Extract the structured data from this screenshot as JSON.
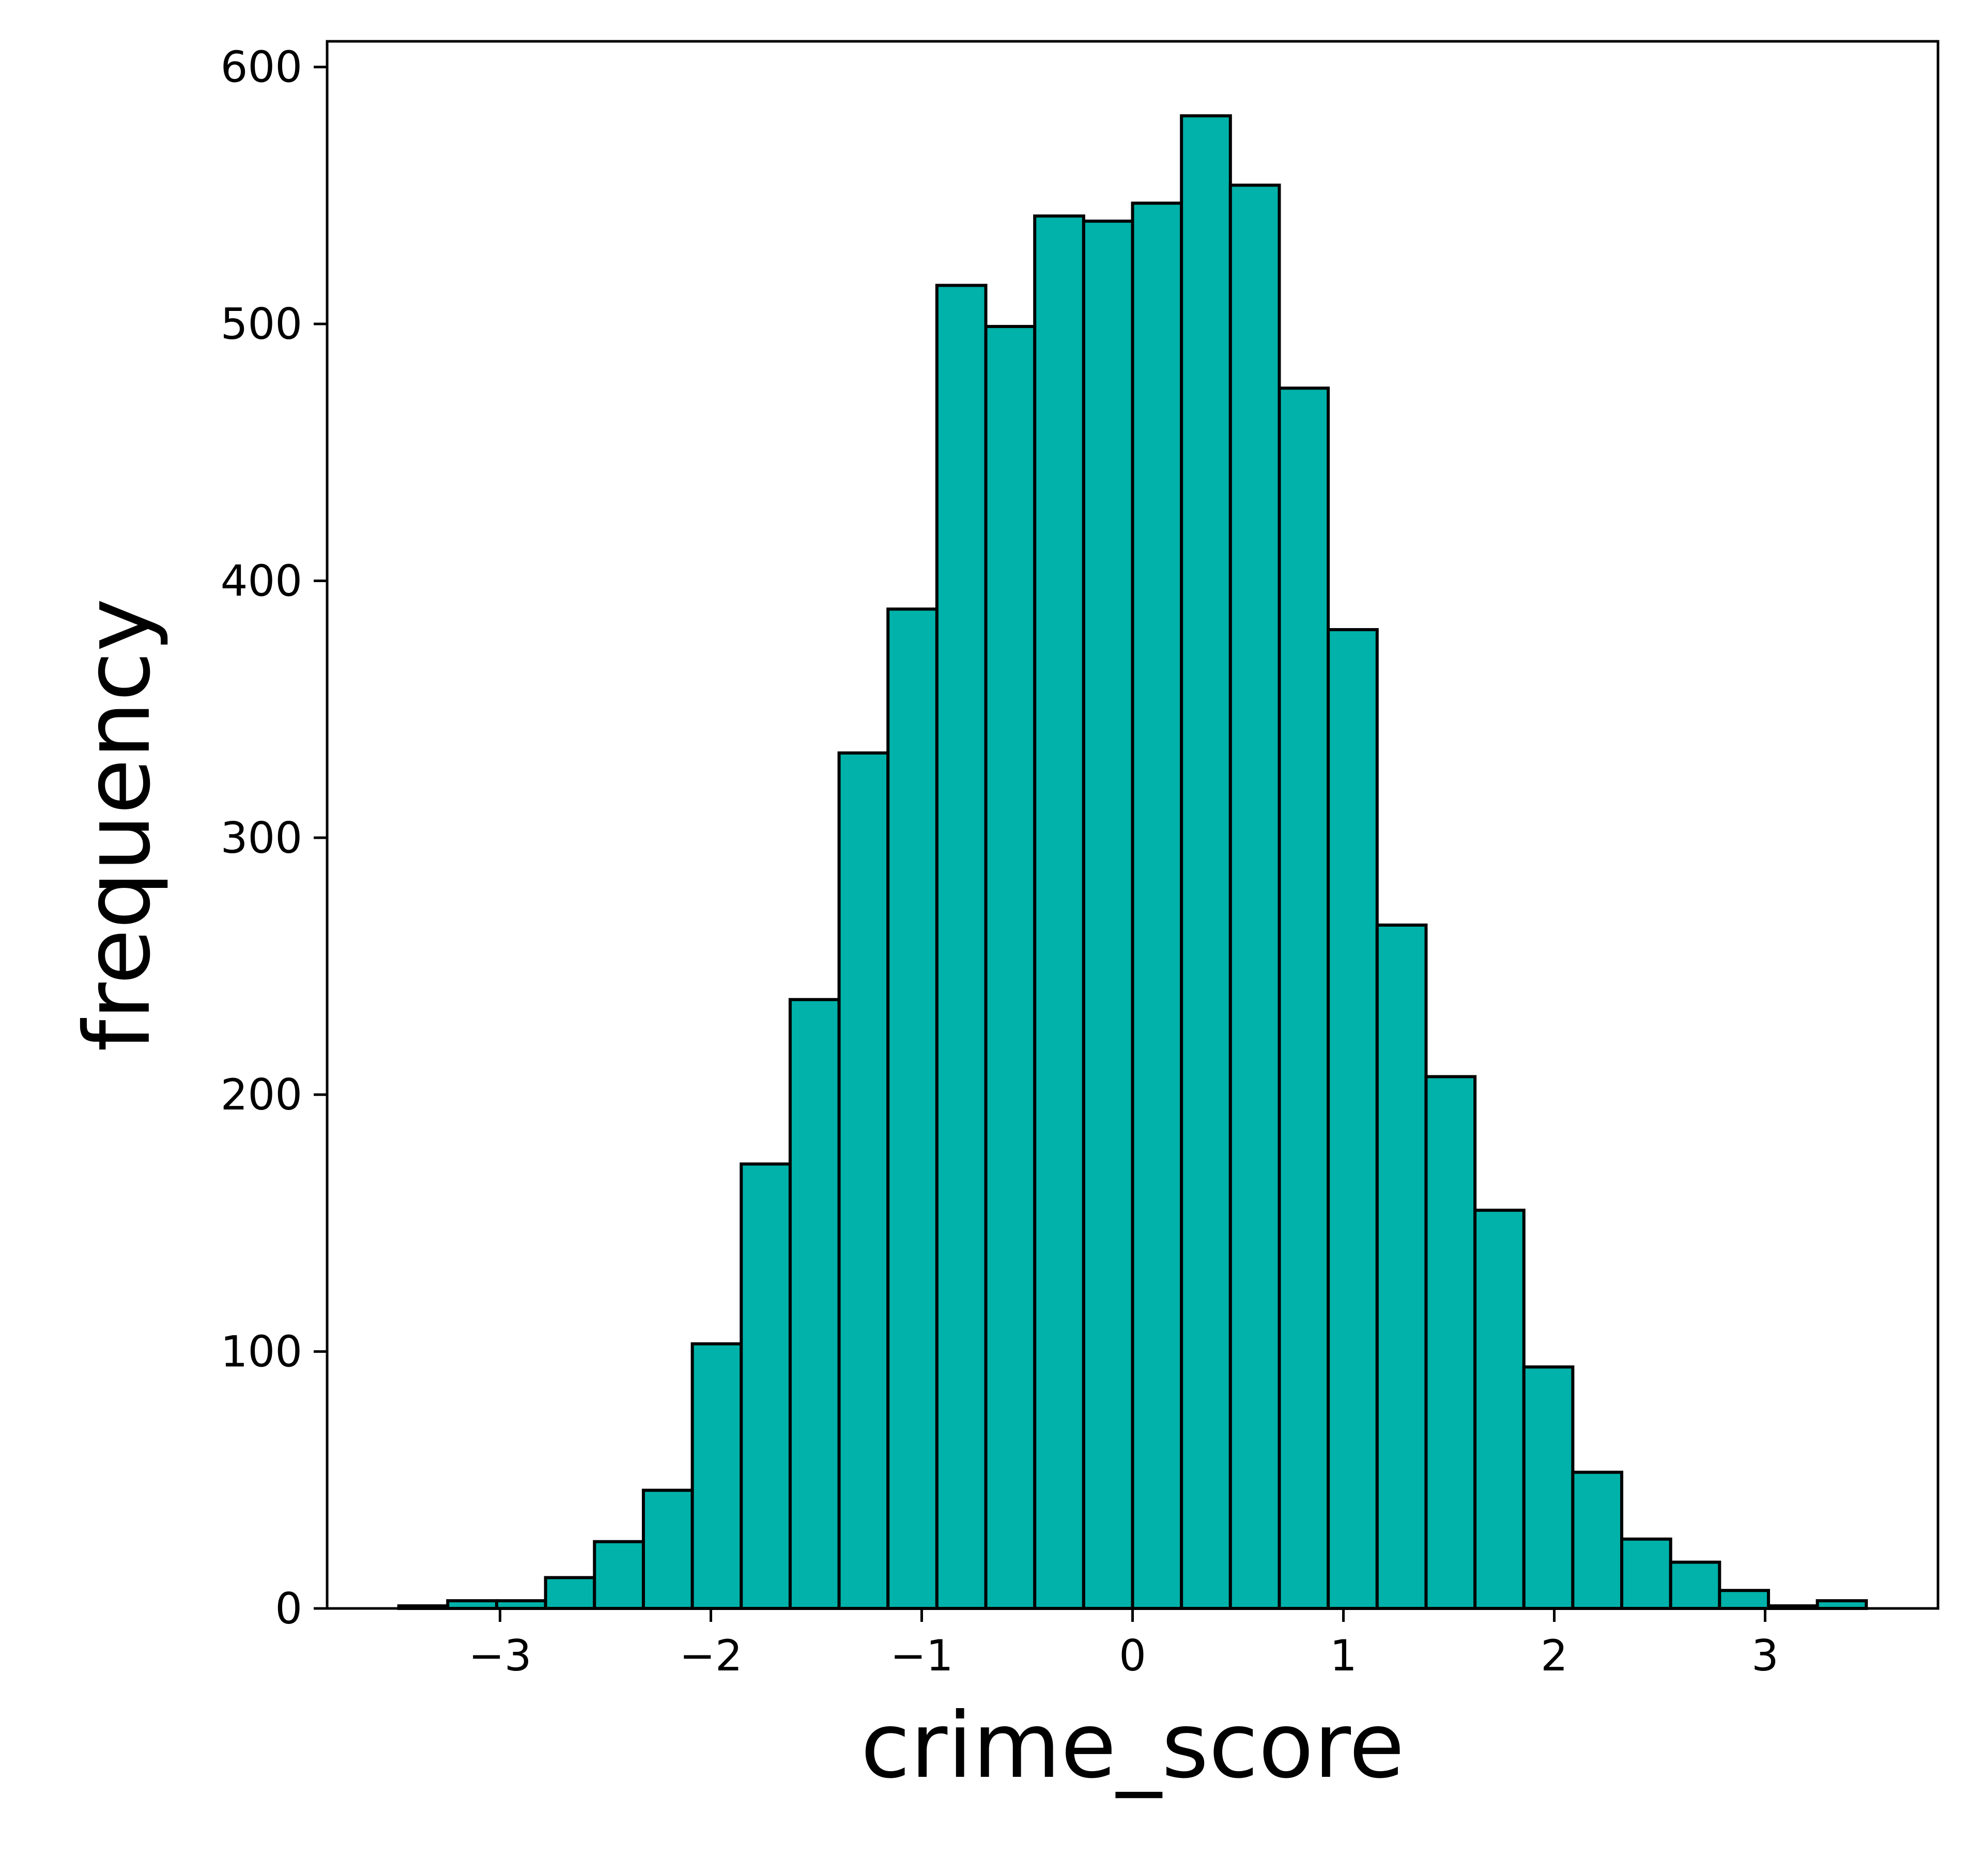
{
  "chart_data": {
    "type": "bar",
    "subtype": "histogram",
    "title": "",
    "xlabel": "crime_score",
    "ylabel": "frequency",
    "xlim": [
      -3.82,
      3.82
    ],
    "ylim": [
      0,
      610
    ],
    "grid": false,
    "legend": "none",
    "bin_edges": [
      -3.48,
      -3.248,
      -3.016,
      -2.784,
      -2.552,
      -2.32,
      -2.088,
      -1.856,
      -1.624,
      -1.392,
      -1.16,
      -0.928,
      -0.696,
      -0.464,
      -0.232,
      0.0,
      0.232,
      0.464,
      0.696,
      0.928,
      1.16,
      1.392,
      1.624,
      1.856,
      2.088,
      2.32,
      2.552,
      2.784,
      3.016,
      3.248,
      3.48
    ],
    "values": [
      1,
      3,
      3,
      12,
      26,
      46,
      103,
      173,
      237,
      333,
      389,
      515,
      499,
      542,
      540,
      547,
      581,
      554,
      475,
      381,
      266,
      207,
      155,
      94,
      53,
      27,
      18,
      7,
      1,
      3
    ],
    "xticks": [
      -3,
      -2,
      -1,
      0,
      1,
      2,
      3
    ],
    "xtick_labels": [
      "−3",
      "−2",
      "−1",
      "0",
      "1",
      "2",
      "3"
    ],
    "yticks": [
      0,
      100,
      200,
      300,
      400,
      500,
      600
    ],
    "ytick_labels": [
      "0",
      "100",
      "200",
      "300",
      "400",
      "500",
      "600"
    ],
    "colors": {
      "bar_fill": "#00B2A9",
      "bar_edge": "#000000",
      "axes": "#000000",
      "background": "#ffffff"
    }
  }
}
